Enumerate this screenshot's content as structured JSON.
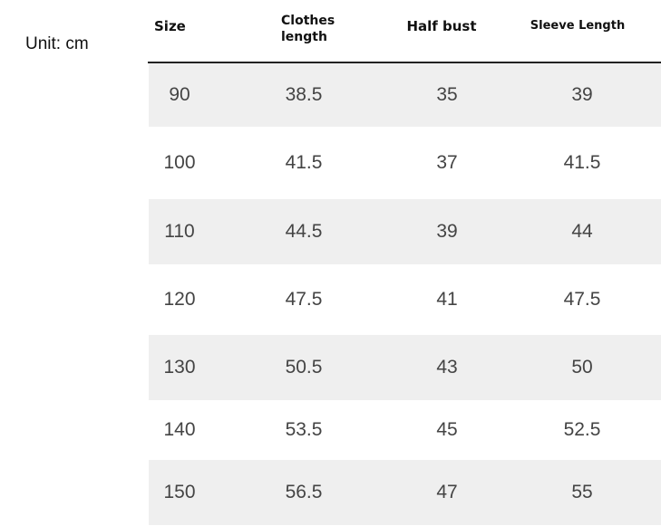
{
  "unit": "Unit: cm",
  "table": {
    "header": [
      "Size",
      "Clothes length",
      "Half bust",
      "Sleeve Length"
    ],
    "rows": [
      [
        "90",
        "38.5",
        "35",
        "39"
      ],
      [
        "100",
        "41.5",
        "37",
        "41.5"
      ],
      [
        "110",
        "44.5",
        "39",
        "44"
      ],
      [
        "120",
        "47.5",
        "41",
        "47.5"
      ],
      [
        "130",
        "50.5",
        "43",
        "50"
      ],
      [
        "140",
        "53.5",
        "45",
        "52.5"
      ],
      [
        "150",
        "56.5",
        "47",
        "55"
      ]
    ]
  }
}
